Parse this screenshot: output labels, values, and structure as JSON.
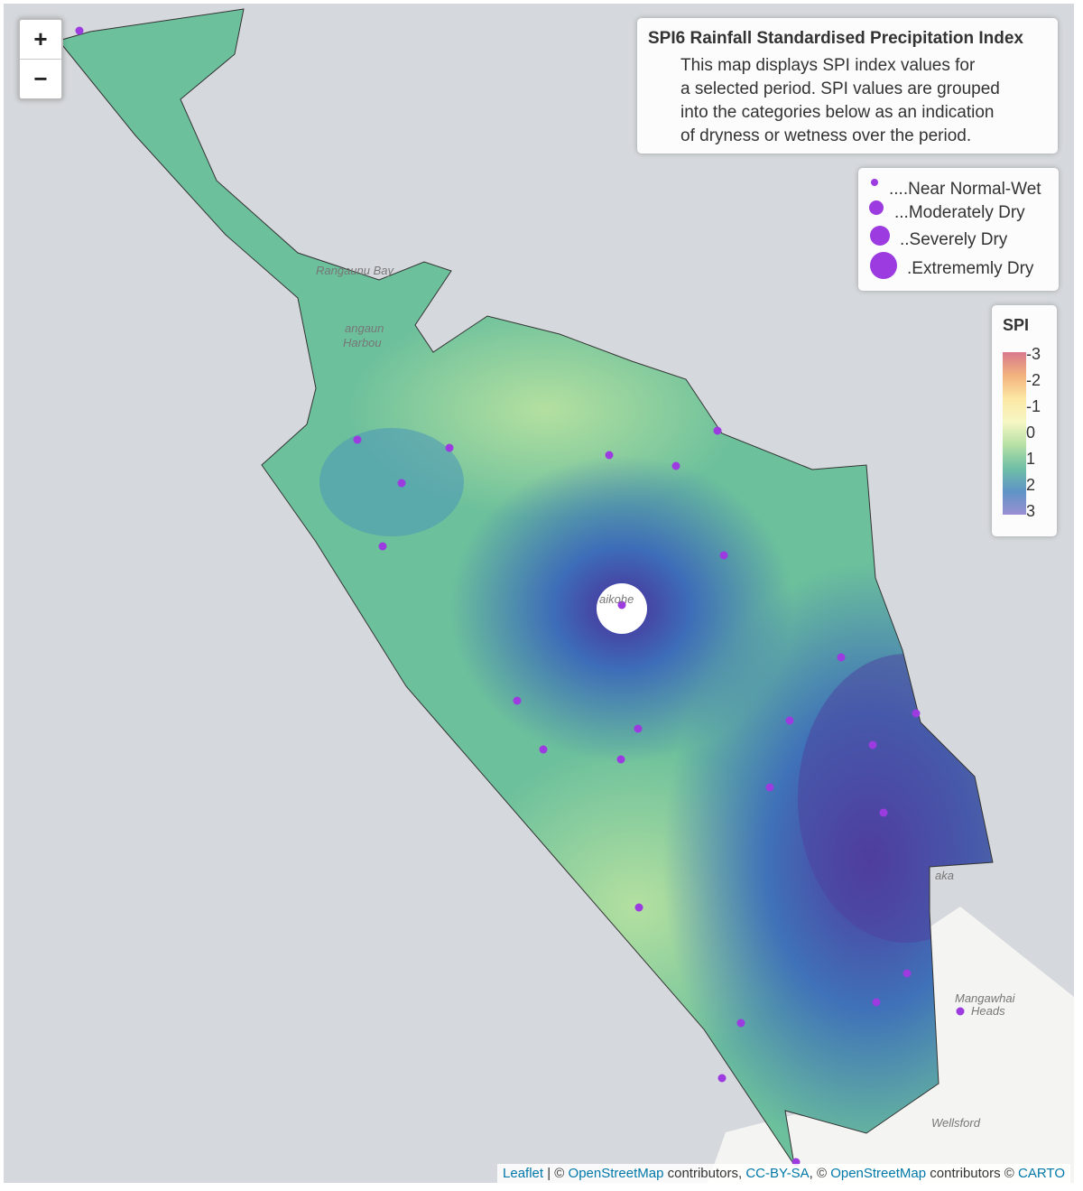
{
  "zoom": {
    "in": "+",
    "out": "−"
  },
  "info": {
    "title": "SPI6 Rainfall Standardised Precipitation Index",
    "lines": [
      "This map displays SPI index values for",
      "a selected period. SPI values are grouped",
      "into the categories below as an indication",
      "of dryness or wetness over the period."
    ]
  },
  "size_legend": [
    "....Near Normal-Wet",
    "...Moderately Dry",
    "..Severely Dry",
    ".Extrememly Dry"
  ],
  "color_legend": {
    "title": "SPI",
    "labels": [
      "-3",
      "-2",
      "-1",
      "0",
      "1",
      "2",
      "3"
    ]
  },
  "places": [
    "Rangaunu Bay",
    "angaun",
    "Harbou",
    "aikohe",
    "aka",
    "Mangawhai",
    "Heads",
    "Wellsford"
  ],
  "attribution": [
    "Leaflet",
    " | © ",
    "OpenStreetMap",
    " contributors, ",
    "CC-BY-SA",
    ", © ",
    "OpenStreetMap",
    " contributors © ",
    "CARTO"
  ]
}
